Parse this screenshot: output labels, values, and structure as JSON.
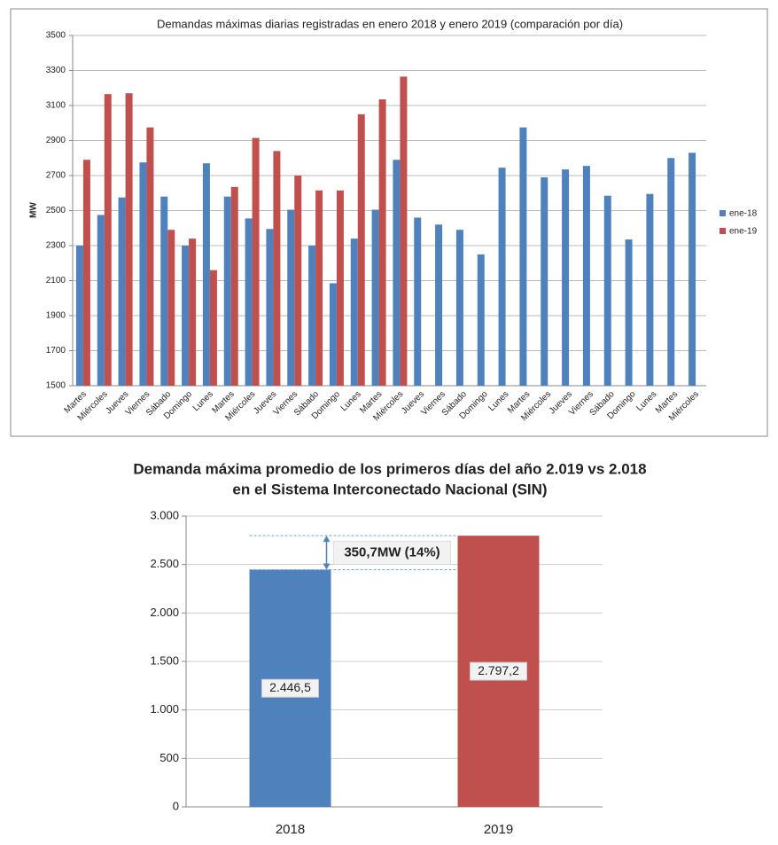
{
  "chart_data": [
    {
      "type": "bar",
      "title": "Demandas máximas diarias registradas en enero 2018 y enero 2019 (comparación por día)",
      "y_label": "MW",
      "categories": [
        "Martes",
        "Miércoles",
        "Jueves",
        "Viernes",
        "Sábado",
        "Domingo",
        "Lunes",
        "Martes",
        "Miércoles",
        "Jueves",
        "Viernes",
        "Sábado",
        "Domingo",
        "Lunes",
        "Martes",
        "Miércoles",
        "Jueves",
        "Viernes",
        "Sábado",
        "Domingo",
        "Lunes",
        "Martes",
        "Miércoles",
        "Jueves",
        "Viernes",
        "Sábado",
        "Domingo",
        "Lunes",
        "Martes",
        "Miércoles"
      ],
      "series": [
        {
          "name": "ene-18",
          "color": "#4f81bd",
          "values": [
            2300,
            2475,
            2575,
            2775,
            2580,
            2300,
            2770,
            2580,
            2455,
            2395,
            2505,
            2300,
            2085,
            2340,
            2505,
            2790,
            2460,
            2420,
            2390,
            2250,
            2745,
            2975,
            2690,
            2735,
            2755,
            2585,
            2335,
            2595,
            2800,
            2830
          ]
        },
        {
          "name": "ene-19",
          "color": "#c0504d",
          "values": [
            2790,
            3165,
            3170,
            2975,
            2390,
            2340,
            2160,
            2635,
            2915,
            2840,
            2700,
            2615,
            2615,
            3050,
            3135,
            3265,
            null,
            null,
            null,
            null,
            null,
            null,
            null,
            null,
            null,
            null,
            null,
            null,
            null,
            null
          ]
        }
      ],
      "ylim": [
        1500,
        3500
      ],
      "yticks": [
        1500,
        1700,
        1900,
        2100,
        2300,
        2500,
        2700,
        2900,
        3100,
        3300,
        3500
      ],
      "grid": true,
      "legend": "right"
    },
    {
      "type": "bar",
      "title": "Demanda máxima promedio de los primeros días del año 2.019 vs 2.018",
      "subtitle": "en el Sistema Interconectado Nacional (SIN)",
      "categories": [
        "2018",
        "2019"
      ],
      "values": [
        2446.5,
        2797.2
      ],
      "value_labels": [
        "2.446,5",
        "2.797,2"
      ],
      "colors": [
        "#4f81bd",
        "#c0504d"
      ],
      "annotation": "350,7MW (14%)",
      "ylim": [
        0,
        3000
      ],
      "yticks": [
        0,
        500,
        {
          "value": 1000,
          "label": "1.000"
        },
        {
          "value": 1500,
          "label": "1.500"
        },
        {
          "value": 2000,
          "label": "2.000"
        },
        {
          "value": 2500,
          "label": "2.500"
        },
        {
          "value": 3000,
          "label": "3.000"
        }
      ],
      "grid": true
    }
  ]
}
